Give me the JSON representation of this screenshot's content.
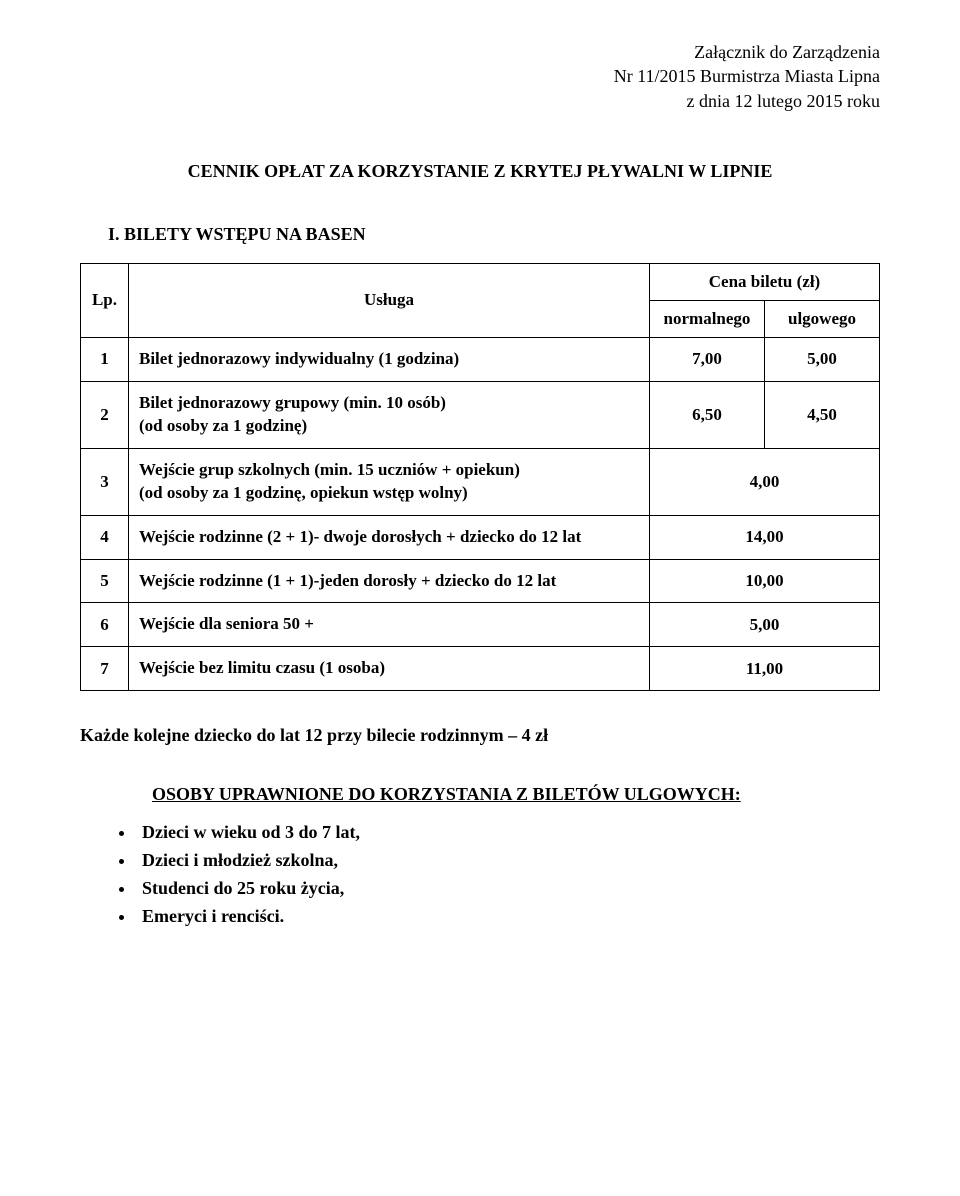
{
  "attachment": {
    "line1": "Załącznik do Zarządzenia",
    "line2": "Nr 11/2015 Burmistrza Miasta Lipna",
    "line3": "z dnia 12 lutego 2015 roku"
  },
  "main_title": "CENNIK OPŁAT ZA KORZYSTANIE Z KRYTEJ PŁYWALNI W LIPNIE",
  "section_title": "I. BILETY WSTĘPU NA BASEN",
  "table": {
    "header_lp": "Lp.",
    "header_service": "Usługa",
    "header_price_group": "Cena biletu (zł)",
    "header_normal": "normalnego",
    "header_discount": "ulgowego",
    "rows": [
      {
        "lp": "1",
        "service": "Bilet jednorazowy indywidualny (1 godzina)",
        "normal": "7,00",
        "discount": "5,00"
      },
      {
        "lp": "2",
        "service": "Bilet jednorazowy grupowy (min. 10 osób)\n(od osoby za 1 godzinę)",
        "normal": "6,50",
        "discount": "4,50"
      },
      {
        "lp": "3",
        "service": "Wejście grup szkolnych (min. 15 uczniów + opiekun)\n(od osoby za 1 godzinę, opiekun wstęp wolny)",
        "merged": "4,00"
      },
      {
        "lp": "4",
        "service": "Wejście rodzinne (2 + 1)- dwoje dorosłych + dziecko do 12 lat",
        "merged": "14,00"
      },
      {
        "lp": "5",
        "service": "Wejście rodzinne (1 + 1)-jeden dorosły + dziecko do 12 lat",
        "merged": "10,00"
      },
      {
        "lp": "6",
        "service": "Wejście dla seniora 50 +",
        "merged": "5,00"
      },
      {
        "lp": "7",
        "service": "Wejście bez limitu czasu (1 osoba)",
        "merged": "11,00"
      }
    ]
  },
  "note": "Każde kolejne dziecko do lat 12 przy bilecie rodzinnym – 4 zł",
  "eligible_title": "OSOBY UPRAWNIONE DO KORZYSTANIA Z BILETÓW ULGOWYCH:",
  "eligible_items": [
    "Dzieci w wieku od 3 do 7 lat,",
    "Dzieci i młodzież szkolna,",
    "Studenci do 25 roku życia,",
    "Emeryci i renciści."
  ],
  "colors": {
    "text": "#000000",
    "background": "#ffffff",
    "border": "#000000"
  },
  "typography": {
    "family": "Times New Roman",
    "base_size_pt": 13,
    "bold_sections": true
  }
}
